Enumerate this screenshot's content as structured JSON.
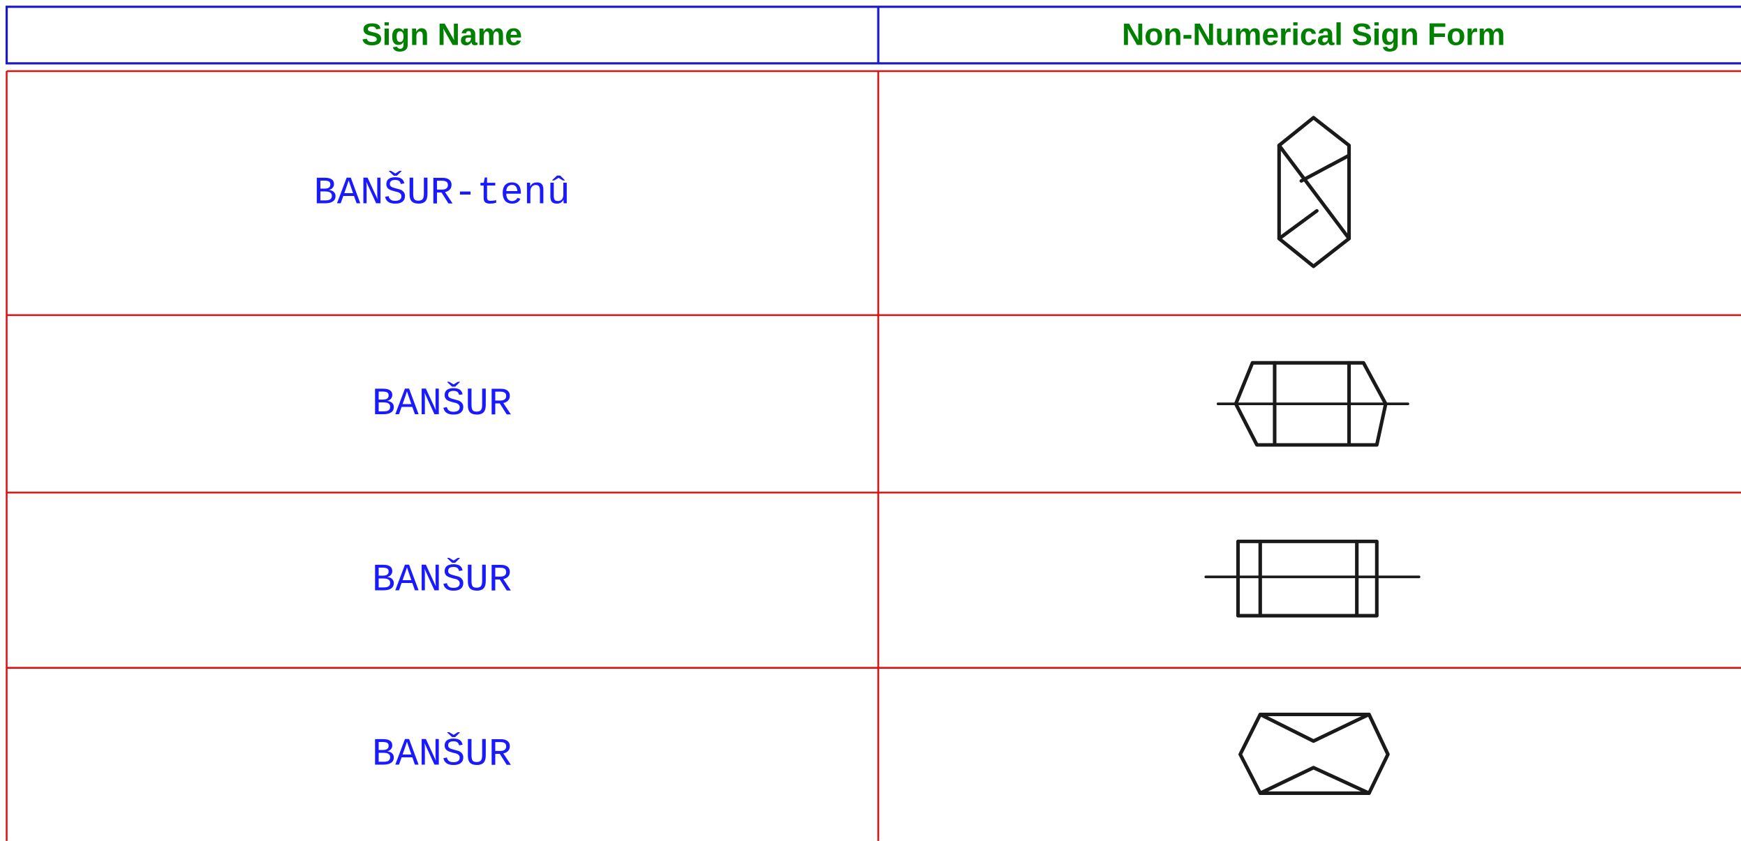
{
  "header": {
    "columns": [
      "Sign Name",
      "Non-Numerical Sign Form"
    ]
  },
  "table": {
    "rows": [
      {
        "name": "BANŠUR-tenû"
      },
      {
        "name": "BANŠUR"
      },
      {
        "name": "BANŠUR"
      },
      {
        "name": "BANŠUR"
      }
    ]
  }
}
